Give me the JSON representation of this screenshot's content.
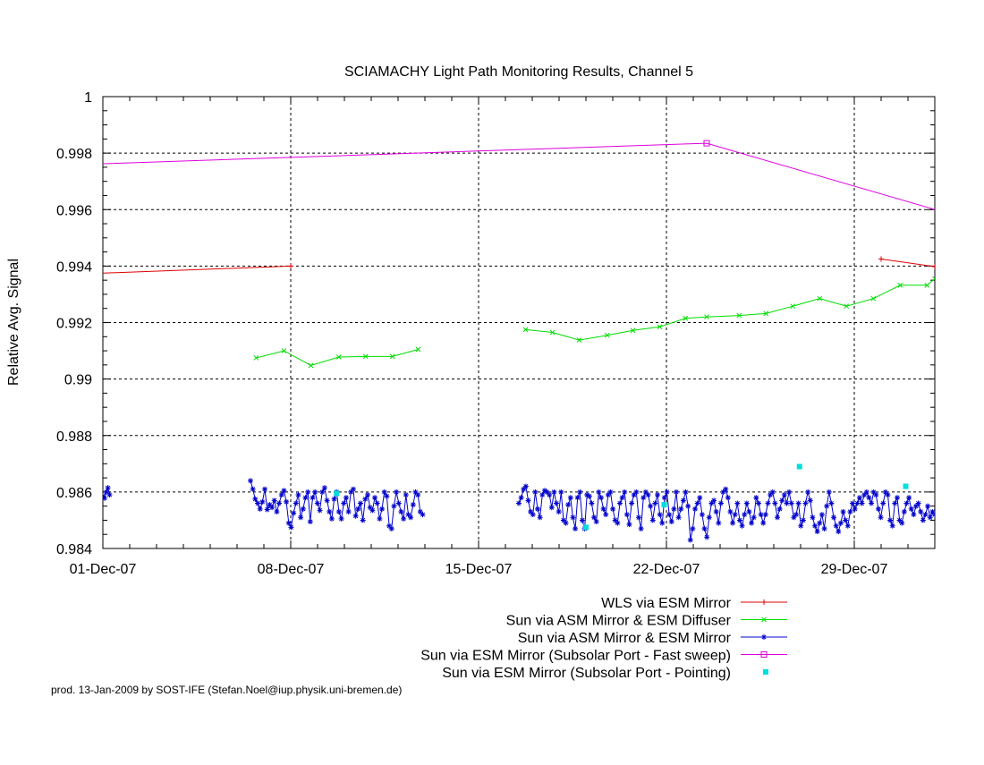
{
  "chart_data": {
    "type": "line",
    "title": "SCIAMACHY Light Path Monitoring Results, Channel 5",
    "xlabel": "",
    "ylabel": "Relative Avg. Signal",
    "xlim": [
      "2007-12-01",
      "2008-01-01"
    ],
    "ylim": [
      0.984,
      1.0
    ],
    "x_ticks": [
      "01-Dec-07",
      "08-Dec-07",
      "15-Dec-07",
      "22-Dec-07",
      "29-Dec-07"
    ],
    "y_ticks": [
      "0.984",
      "0.986",
      "0.988",
      "0.99",
      "0.992",
      "0.994",
      "0.996",
      "0.998",
      "1"
    ],
    "grid": true,
    "legend_position": "bottom",
    "series": [
      {
        "name": "WLS via ESM Mirror",
        "color": "#dd0000",
        "marker": "plus",
        "points": [
          [
            "2007-11-24",
            0.9935
          ],
          [
            "2007-12-08",
            0.994
          ],
          null,
          [
            "2007-12-30",
            0.99425
          ],
          [
            "2008-01-01",
            0.99398
          ],
          [
            "2008-01-04",
            0.9938
          ]
        ]
      },
      {
        "name": "Sun via ASM Mirror & ESM Diffuser",
        "color": "#00dd00",
        "marker": "x",
        "points": [
          [
            "2007-12-06 17:00",
            0.99075
          ],
          [
            "2007-12-07 18:00",
            0.991
          ],
          [
            "2007-12-08 18:00",
            0.99048
          ],
          [
            "2007-12-09 19:00",
            0.99078
          ],
          [
            "2007-12-10 19:00",
            0.9908
          ],
          [
            "2007-12-11 19:00",
            0.9908
          ],
          [
            "2007-12-12 18:00",
            0.99105
          ],
          null,
          [
            "2007-12-16 18:00",
            0.99175
          ],
          [
            "2007-12-17 18:00",
            0.99165
          ],
          [
            "2007-12-18 18:00",
            0.99138
          ],
          [
            "2007-12-19 19:00",
            0.99155
          ],
          [
            "2007-12-20 18:00",
            0.99172
          ],
          [
            "2007-12-21 18:00",
            0.99185
          ],
          [
            "2007-12-22 17:00",
            0.99215
          ],
          [
            "2007-12-23 12:00",
            0.9922
          ],
          [
            "2007-12-24 17:00",
            0.99225
          ],
          [
            "2007-12-25 17:00",
            0.99232
          ],
          [
            "2007-12-26 17:00",
            0.99258
          ],
          [
            "2007-12-27 17:00",
            0.99285
          ],
          [
            "2007-12-28 17:00",
            0.99258
          ],
          [
            "2007-12-29 17:00",
            0.99285
          ],
          [
            "2007-12-30 17:00",
            0.99332
          ],
          [
            "2007-12-31 17:00",
            0.99332
          ],
          [
            "2008-01-01",
            0.99355
          ]
        ]
      },
      {
        "name": "Sun via ASM Mirror & ESM Mirror",
        "color": "#0000cc",
        "marker": "star",
        "segments": [
          {
            "start": "2007-12-01 00:00",
            "end": "2007-12-01 06:00",
            "values": [
              0.98585,
              0.98578,
              0.986,
              0.98615,
              0.9859
            ]
          },
          {
            "start": "2007-12-06 12:00",
            "end": "2007-12-12 22:00",
            "values": [
              0.9864,
              0.9861,
              0.98575,
              0.9856,
              0.9854,
              0.98565,
              0.9861,
              0.98538,
              0.98555,
              0.98545,
              0.9857,
              0.9853,
              0.9856,
              0.9859,
              0.98605,
              0.98565,
              0.9849,
              0.98475,
              0.98525,
              0.9856,
              0.9859,
              0.9851,
              0.9854,
              0.9858,
              0.986,
              0.98495,
              0.9858,
              0.986,
              0.9856,
              0.98535,
              0.986,
              0.98615,
              0.9857,
              0.9853,
              0.98505,
              0.98575,
              0.986,
              0.9853,
              0.98505,
              0.9856,
              0.9858,
              0.9853,
              0.986,
              0.9861,
              0.98515,
              0.9854,
              0.9856,
              0.985,
              0.98575,
              0.9859,
              0.98545,
              0.98535,
              0.9858,
              0.9856,
              0.98505,
              0.9854,
              0.986,
              0.98585,
              0.9848,
              0.9847,
              0.9855,
              0.986,
              0.9856,
              0.9853,
              0.98505,
              0.9859,
              0.9852,
              0.9851,
              0.98555,
              0.986,
              0.9859,
              0.9853,
              0.9852
            ]
          },
          {
            "start": "2007-12-16 12:00",
            "end": "2008-01-01 00:00",
            "values": [
              0.9856,
              0.9858,
              0.9861,
              0.9862,
              0.9857,
              0.9853,
              0.9852,
              0.986,
              0.9854,
              0.9851,
              0.9859,
              0.98605,
              0.986,
              0.9859,
              0.98545,
              0.986,
              0.9856,
              0.9853,
              0.986,
              0.985,
              0.9849,
              0.98555,
              0.9858,
              0.9851,
              0.9847,
              0.9858,
              0.986,
              0.985,
              0.9847,
              0.9859,
              0.98585,
              0.9856,
              0.9851,
              0.98495,
              0.986,
              0.9858,
              0.9854,
              0.9852,
              0.9859,
              0.986,
              0.9854,
              0.985,
              0.9849,
              0.9856,
              0.9858,
              0.986,
              0.9852,
              0.98485,
              0.9856,
              0.9859,
              0.986,
              0.9851,
              0.9847,
              0.9858,
              0.986,
              0.9859,
              0.9855,
              0.985,
              0.9856,
              0.9859,
              0.9852,
              0.9849,
              0.9858,
              0.986,
              0.9852,
              0.98495,
              0.9854,
              0.986,
              0.9851,
              0.9854,
              0.9857,
              0.986,
              0.9855,
              0.9843,
              0.9847,
              0.9854,
              0.9856,
              0.9858,
              0.9852,
              0.9847,
              0.9844,
              0.9851,
              0.9856,
              0.9857,
              0.9853,
              0.9849,
              0.9856,
              0.986,
              0.9861,
              0.9858,
              0.9853,
              0.9849,
              0.9852,
              0.9856,
              0.985,
              0.9848,
              0.9852,
              0.9856,
              0.9853,
              0.9849,
              0.9851,
              0.9858,
              0.9856,
              0.9852,
              0.9849,
              0.9852,
              0.9856,
              0.9859,
              0.986,
              0.9856,
              0.9851,
              0.9854,
              0.9857,
              0.9859,
              0.9856,
              0.986,
              0.9856,
              0.9851,
              0.9852,
              0.9856,
              0.9848,
              0.985,
              0.9856,
              0.986,
              0.9857,
              0.9851,
              0.9848,
              0.9846,
              0.9849,
              0.9852,
              0.9847,
              0.9855,
              0.986,
              0.9856,
              0.9851,
              0.9848,
              0.9846,
              0.9849,
              0.9853,
              0.985,
              0.9848,
              0.9853,
              0.9856,
              0.9854,
              0.9856,
              0.9858,
              0.9856,
              0.9859,
              0.986,
              0.9858,
              0.9856,
              0.986,
              0.9859,
              0.9854,
              0.9851,
              0.9856,
              0.986,
              0.9859,
              0.985,
              0.9848,
              0.9856,
              0.9858,
              0.985,
              0.9849,
              0.9853,
              0.9856,
              0.9858,
              0.9854,
              0.9852,
              0.9855,
              0.9856,
              0.9853,
              0.985,
              0.9852,
              0.9855,
              0.9851,
              0.9853,
              0.9852
            ]
          }
        ]
      },
      {
        "name": "Sun via ESM Mirror (Subsolar Port - Fast sweep)",
        "color": "#dd00dd",
        "marker": "square",
        "points": [
          [
            "2007-11-21",
            0.9973
          ],
          [
            "2007-12-23 12:00",
            0.99835
          ],
          [
            "2008-01-05",
            0.9949
          ]
        ]
      },
      {
        "name": "Sun via ESM Mirror (Subsolar Port - Pointing)",
        "color": "#00dddd",
        "marker": "dot",
        "points": [
          [
            "2007-12-09 17:00",
            0.98595
          ],
          [
            "2007-12-19 00:00",
            0.98475
          ],
          [
            "2007-12-21 22:00",
            0.98555
          ],
          [
            "2007-12-26 23:00",
            0.9869
          ],
          [
            "2007-12-30 22:00",
            0.9862
          ]
        ]
      }
    ]
  },
  "footer_text": "prod. 13-Jan-2009 by SOST-IFE (Stefan.Noel@iup.physik.uni-bremen.de)"
}
